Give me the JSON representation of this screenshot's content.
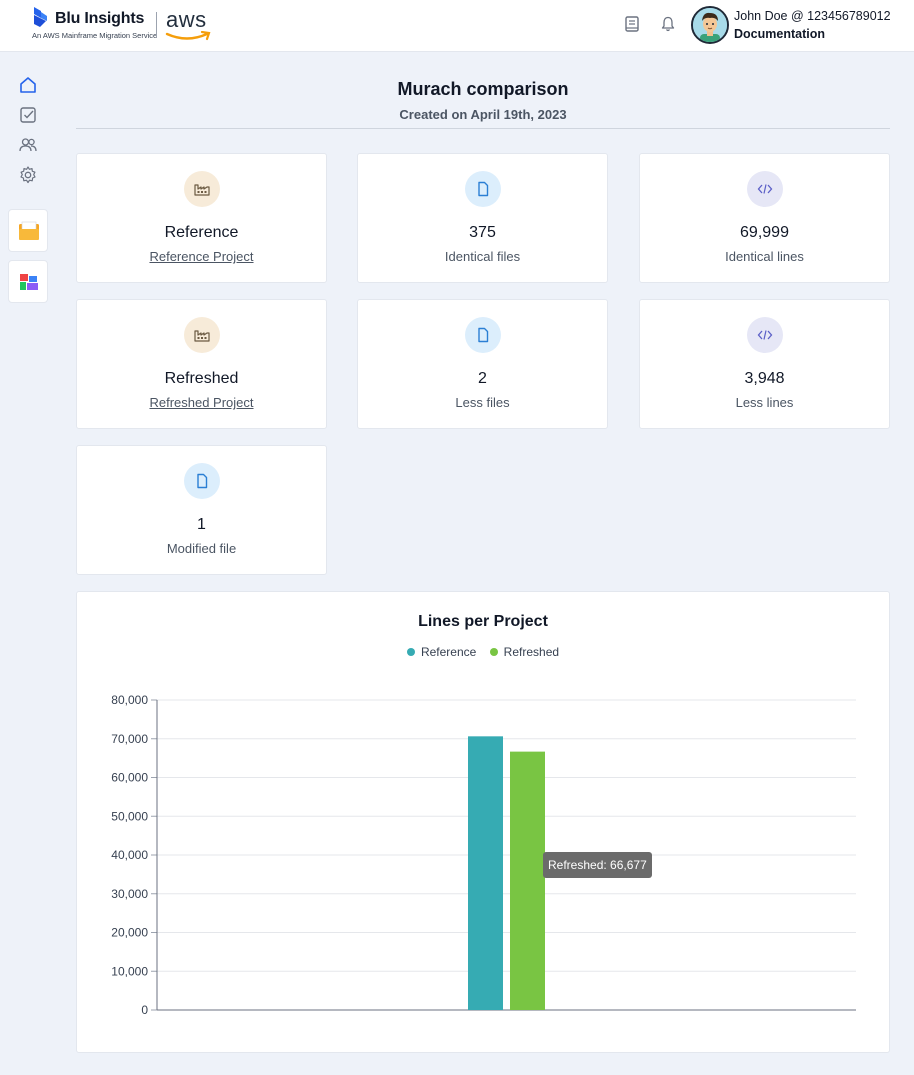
{
  "header": {
    "brand_title": "Blu Insights",
    "brand_subtitle": "An AWS Mainframe Migration Service",
    "aws_logo_text": "aws",
    "user_name": "John Doe @ 123456789012",
    "user_link": "Documentation"
  },
  "page": {
    "title": "Murach comparison",
    "subtitle": "Created on April 19th, 2023"
  },
  "cards": [
    {
      "value": "Reference",
      "label": "Reference Project",
      "icon": "factory-icon"
    },
    {
      "value": "375",
      "label": "Identical files",
      "icon": "file-icon"
    },
    {
      "value": "69,999",
      "label": "Identical lines",
      "icon": "code-icon"
    },
    {
      "value": "Refreshed",
      "label": "Refreshed Project",
      "icon": "factory-icon"
    },
    {
      "value": "2",
      "label": "Less files",
      "icon": "file-icon"
    },
    {
      "value": "3,948",
      "label": "Less lines",
      "icon": "code-icon"
    },
    {
      "value": "1",
      "label": "Modified file",
      "icon": "file-icon"
    }
  ],
  "chart_data": {
    "type": "bar",
    "title": "Lines per Project",
    "series": [
      {
        "name": "Reference",
        "value": 70625,
        "color": "#36abb3"
      },
      {
        "name": "Refreshed",
        "value": 66677,
        "color": "#79c543"
      }
    ],
    "ylim": [
      0,
      80000
    ],
    "yticks": [
      "80,000",
      "70,000",
      "60,000",
      "50,000",
      "40,000",
      "30,000",
      "20,000",
      "10,000",
      "0"
    ],
    "grid": true,
    "legend_position": "top-center",
    "tooltip": "Refreshed: 66,677"
  }
}
